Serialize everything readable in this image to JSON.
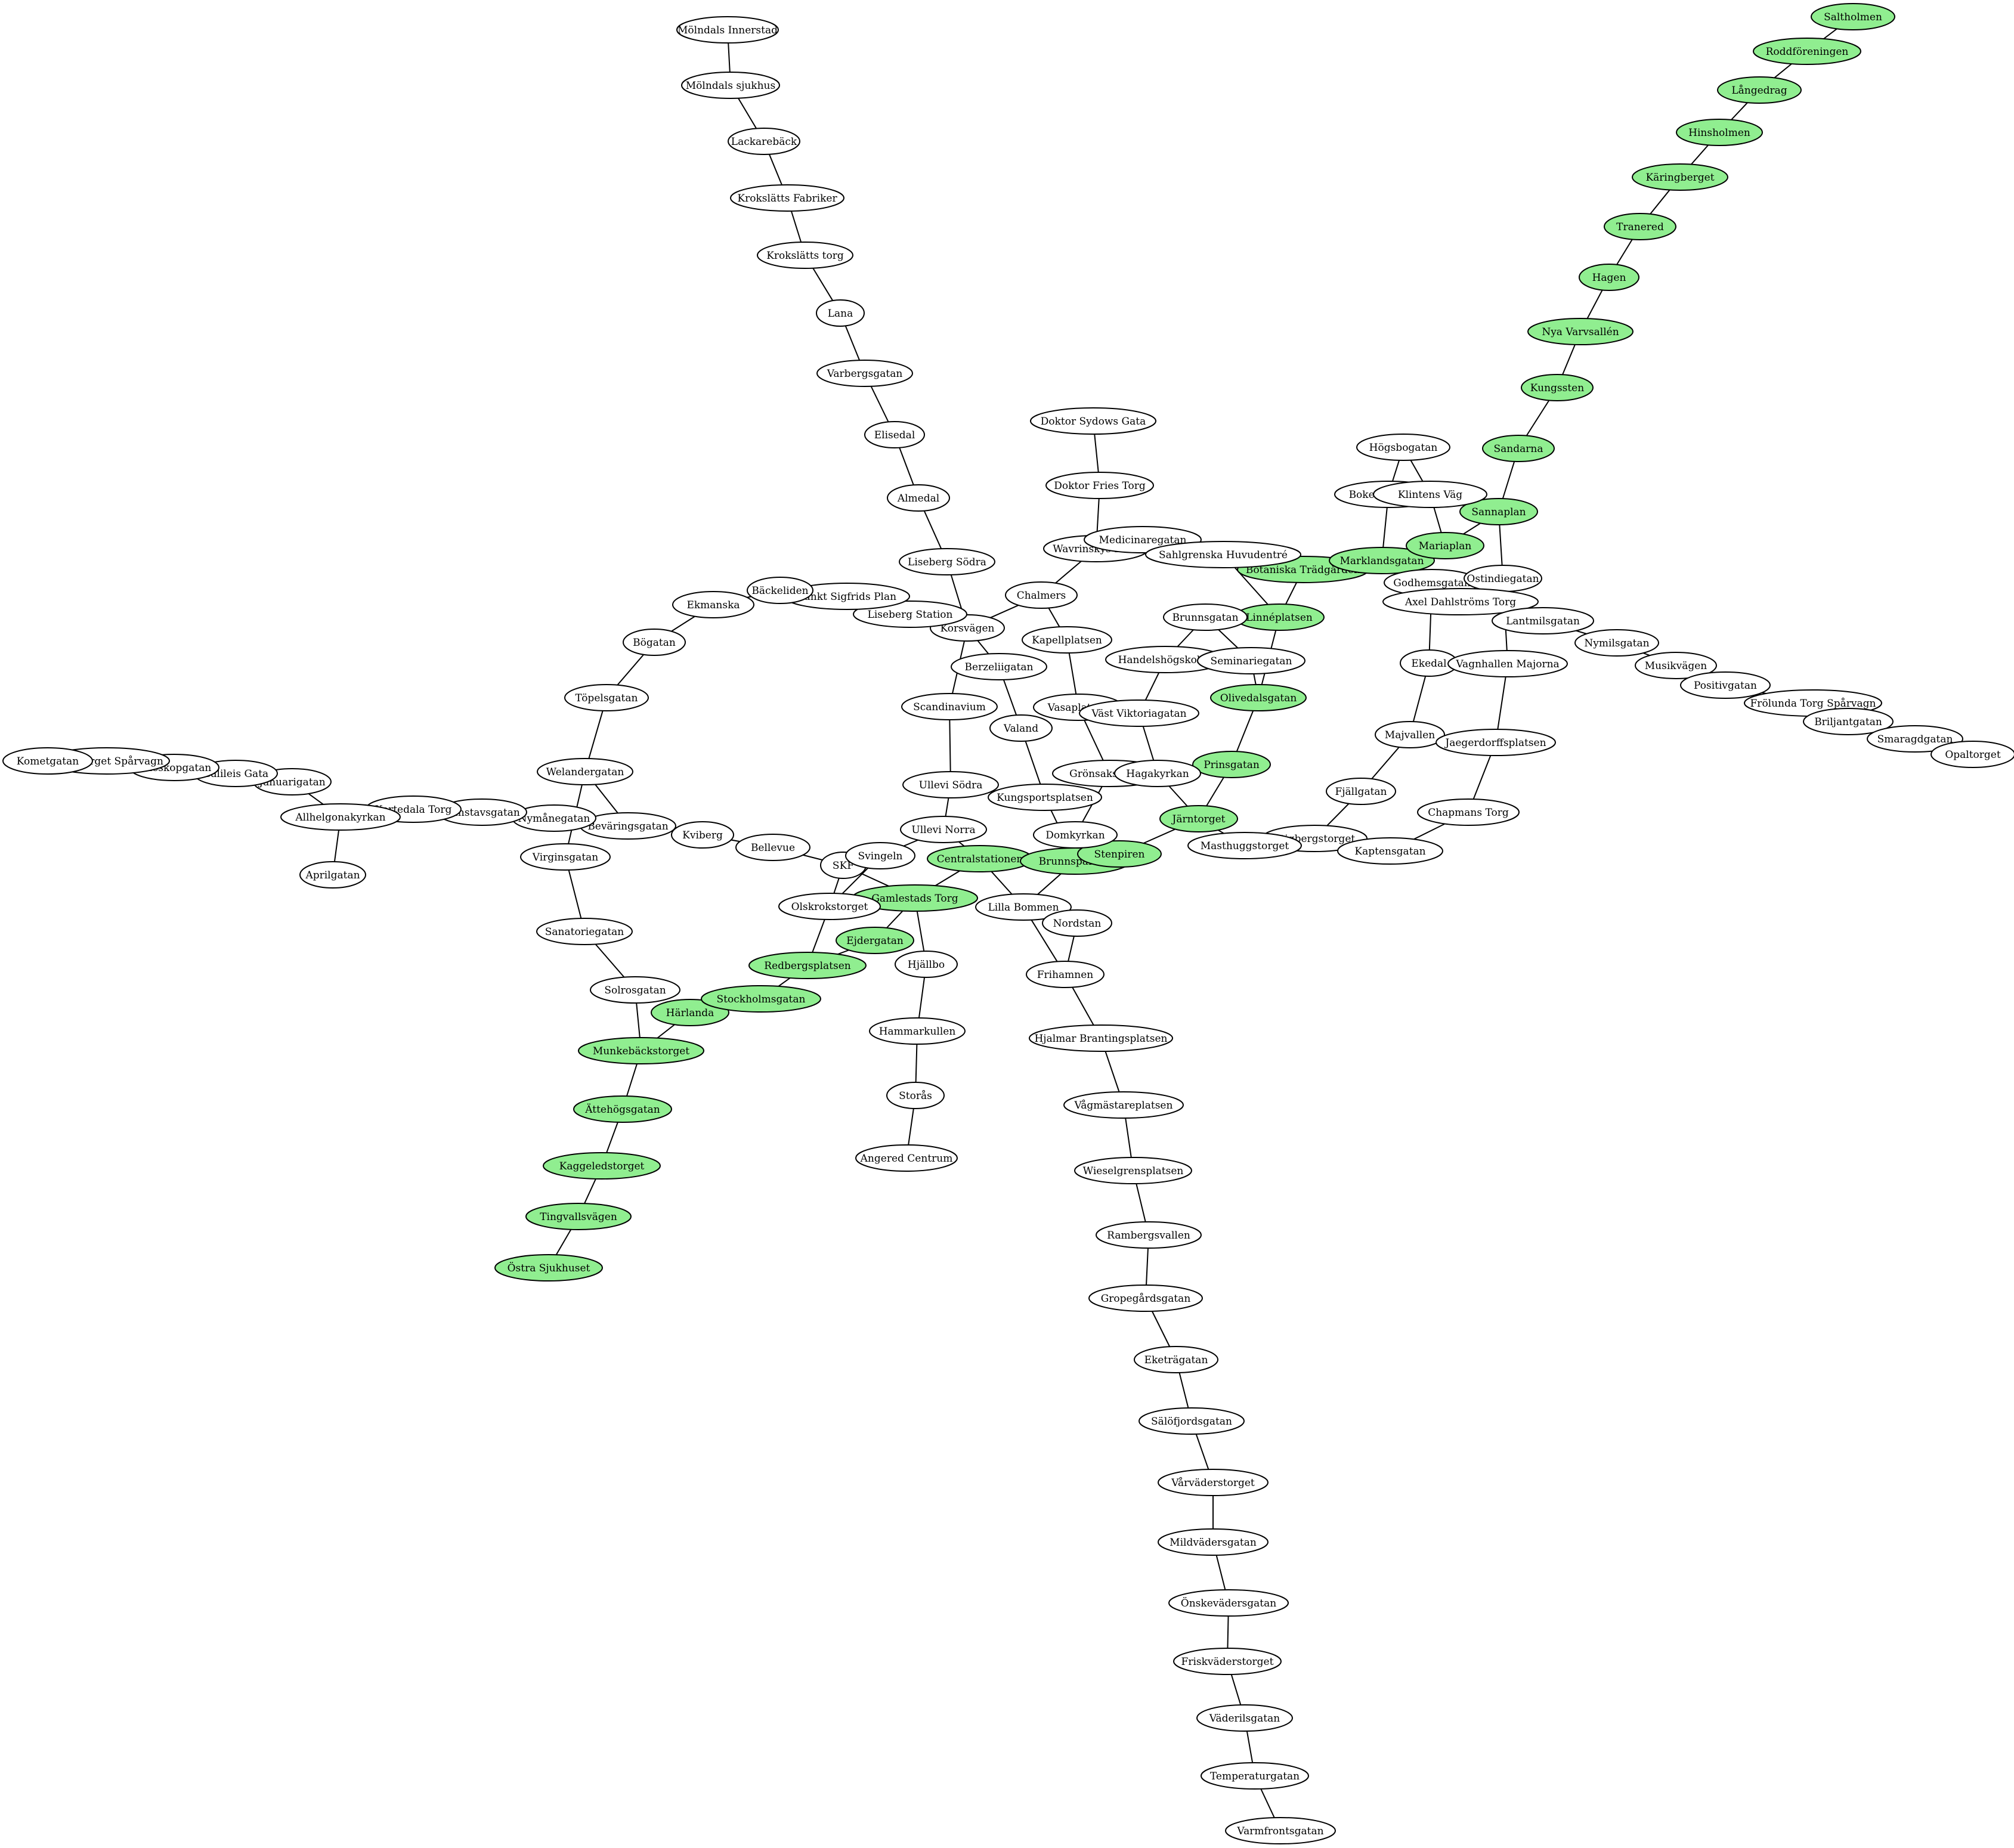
{
  "colors": {
    "highlight": "#90ee90",
    "default": "#ffffff",
    "stroke": "#000000"
  },
  "nodes": [
    {
      "id": "molndals_innerstad",
      "label": "Mölndals Innerstad",
      "hl": false
    },
    {
      "id": "molndals_sjukhus",
      "label": "Mölndals sjukhus",
      "hl": false
    },
    {
      "id": "lackareback",
      "label": "Lackarebäck",
      "hl": false
    },
    {
      "id": "krokslatts_fabriker",
      "label": "Krokslätts Fabriker",
      "hl": false
    },
    {
      "id": "krokslatts_torg",
      "label": "Krokslätts torg",
      "hl": false
    },
    {
      "id": "lana",
      "label": "Lana",
      "hl": false
    },
    {
      "id": "varbergsgatan",
      "label": "Varbergsgatan",
      "hl": false
    },
    {
      "id": "elisedal",
      "label": "Elisedal",
      "hl": false
    },
    {
      "id": "almedal",
      "label": "Almedal",
      "hl": false
    },
    {
      "id": "liseberg_sodra",
      "label": "Liseberg Södra",
      "hl": false
    },
    {
      "id": "korsvagen",
      "label": "Korsvägen",
      "hl": false
    },
    {
      "id": "liseberg_station",
      "label": "Liseberg Station",
      "hl": false
    },
    {
      "id": "sankt_sigfrids_plan",
      "label": "Sankt Sigfrids Plan",
      "hl": false
    },
    {
      "id": "backebol",
      "label": "Bäckeliden",
      "hl": false
    },
    {
      "id": "ekmanska",
      "label": "Ekmanska",
      "hl": false
    },
    {
      "id": "bogatan",
      "label": "Bögatan",
      "hl": false
    },
    {
      "id": "topelsgatan",
      "label": "Töpelsgatan",
      "hl": false
    },
    {
      "id": "welandergatan",
      "label": "Welandergatan",
      "hl": false
    },
    {
      "id": "virginsgatan",
      "label": "Virginsgatan",
      "hl": false
    },
    {
      "id": "sanatoriegatan",
      "label": "Sanatoriegatan",
      "hl": false
    },
    {
      "id": "solrosgatan",
      "label": "Solrosgatan",
      "hl": false
    },
    {
      "id": "munkebackstorget",
      "label": "Munkebäckstorget",
      "hl": true
    },
    {
      "id": "attehogsgatan",
      "label": "Ättehögsgatan",
      "hl": true
    },
    {
      "id": "kaggeledstorget",
      "label": "Kaggeledstorget",
      "hl": true
    },
    {
      "id": "tingvallsvagen",
      "label": "Tingvallsvägen",
      "hl": true
    },
    {
      "id": "ostra_sjukhuset",
      "label": "Östra Sjukhuset",
      "hl": true
    },
    {
      "id": "harlanda",
      "label": "Härlanda",
      "hl": true
    },
    {
      "id": "stockholmsgatan",
      "label": "Stockholmsgatan",
      "hl": true
    },
    {
      "id": "redbergsplatsen",
      "label": "Redbergsplatsen",
      "hl": true
    },
    {
      "id": "ejdergatan",
      "label": "Ejdergatan",
      "hl": true
    },
    {
      "id": "gamlestads_torg",
      "label": "Gamlestads Torg",
      "hl": true
    },
    {
      "id": "olskrokstorget",
      "label": "Olskrokstorget",
      "hl": false
    },
    {
      "id": "skf",
      "label": "SKF",
      "hl": false
    },
    {
      "id": "svingeln",
      "label": "Svingeln",
      "hl": false
    },
    {
      "id": "bellevue",
      "label": "Bellevue",
      "hl": false
    },
    {
      "id": "kviberg",
      "label": "Kviberg",
      "hl": false
    },
    {
      "id": "bevaringsgatan",
      "label": "Beväringsgatan",
      "hl": false
    },
    {
      "id": "nymanegatan",
      "label": "Nymånegatan",
      "hl": false
    },
    {
      "id": "runstavsgatan",
      "label": "Runstavsgatan",
      "hl": false
    },
    {
      "id": "kortedala_torg",
      "label": "Kortedala Torg",
      "hl": false
    },
    {
      "id": "allhelgonakyrkan",
      "label": "Allhelgonakyrkan",
      "hl": false
    },
    {
      "id": "aprilgatan",
      "label": "Aprilgatan",
      "hl": false
    },
    {
      "id": "januarigatan",
      "label": "Januarigatan",
      "hl": false
    },
    {
      "id": "galileis_gata",
      "label": "Galileis Gata",
      "hl": false
    },
    {
      "id": "teleskopgatan",
      "label": "Teleskopgatan",
      "hl": false
    },
    {
      "id": "rymdtorget",
      "label": "Rymdtorget Spårvagn",
      "hl": false
    },
    {
      "id": "kometgatan",
      "label": "Kometgatan",
      "hl": false
    },
    {
      "id": "hjallbo",
      "label": "Hjällbo",
      "hl": false
    },
    {
      "id": "hammarkullen",
      "label": "Hammarkullen",
      "hl": false
    },
    {
      "id": "storas",
      "label": "Storås",
      "hl": false
    },
    {
      "id": "angered_centrum",
      "label": "Angered Centrum",
      "hl": false
    },
    {
      "id": "centralstation",
      "label": "Centralstationen",
      "hl": true
    },
    {
      "id": "brunnsparken",
      "label": "Brunnsparken",
      "hl": true
    },
    {
      "id": "stenpiren",
      "label": "Stenpiren",
      "hl": true
    },
    {
      "id": "jarntorget",
      "label": "Järntorget",
      "hl": true
    },
    {
      "id": "prinsgatan",
      "label": "Prinsgatan",
      "hl": true
    },
    {
      "id": "olivedalsgatan",
      "label": "Olivedalsgatan",
      "hl": true
    },
    {
      "id": "linneplatsen",
      "label": "Linnéplatsen",
      "hl": true
    },
    {
      "id": "botaniska",
      "label": "Botaniska Trädgården",
      "hl": true
    },
    {
      "id": "marklandsgatan",
      "label": "Marklandsgatan",
      "hl": true
    },
    {
      "id": "mariaplan",
      "label": "Mariaplan",
      "hl": true
    },
    {
      "id": "sannaplan",
      "label": "Sannaplan",
      "hl": true
    },
    {
      "id": "sandarna",
      "label": "Sandarna",
      "hl": true
    },
    {
      "id": "kungssten",
      "label": "Kungssten",
      "hl": true
    },
    {
      "id": "nya_varvsallen",
      "label": "Nya Varvsallén",
      "hl": true
    },
    {
      "id": "hagen",
      "label": "Hagen",
      "hl": true
    },
    {
      "id": "tranered",
      "label": "Tranered",
      "hl": true
    },
    {
      "id": "karingberget",
      "label": "Käringberget",
      "hl": true
    },
    {
      "id": "hinsholmen",
      "label": "Hinsholmen",
      "hl": true
    },
    {
      "id": "langedrag",
      "label": "Långedrag",
      "hl": true
    },
    {
      "id": "roddforeningen",
      "label": "Roddföreningen",
      "hl": true
    },
    {
      "id": "saltholmen",
      "label": "Saltholmen",
      "hl": true
    },
    {
      "id": "ullevi_sodra",
      "label": "Ullevi Södra",
      "hl": false
    },
    {
      "id": "ullevi_norra",
      "label": "Ullevi Norra",
      "hl": false
    },
    {
      "id": "scandinavium",
      "label": "Scandinavium",
      "hl": false
    },
    {
      "id": "berzeliigatan",
      "label": "Berzeliigatan",
      "hl": false
    },
    {
      "id": "valand",
      "label": "Valand",
      "hl": false
    },
    {
      "id": "kungsportsplatsen",
      "label": "Kungsportsplatsen",
      "hl": false
    },
    {
      "id": "domkyrkan",
      "label": "Domkyrkan",
      "hl": false
    },
    {
      "id": "lilla_bommen",
      "label": "Lilla Bommen",
      "hl": false
    },
    {
      "id": "nordstan",
      "label": "Nordstan",
      "hl": false
    },
    {
      "id": "frihamnen",
      "label": "Frihamnen",
      "hl": false
    },
    {
      "id": "hjalmar_brantingsplatsen",
      "label": "Hjalmar Brantingsplatsen",
      "hl": false
    },
    {
      "id": "vagmastareplatsen",
      "label": "Vågmästareplatsen",
      "hl": false
    },
    {
      "id": "wieselgrensplatsen",
      "label": "Wieselgrensplatsen",
      "hl": false
    },
    {
      "id": "rambergsvallen",
      "label": "Rambergsvallen",
      "hl": false
    },
    {
      "id": "gropegardsgatan",
      "label": "Gropegårdsgatan",
      "hl": false
    },
    {
      "id": "eketragatan",
      "label": "Eketrägatan",
      "hl": false
    },
    {
      "id": "salofjordsgatan",
      "label": "Sälöfjordsgatan",
      "hl": false
    },
    {
      "id": "varvaderstorget",
      "label": "Vårväderstorget",
      "hl": false
    },
    {
      "id": "mildvadersgatan",
      "label": "Mildvädersgatan",
      "hl": false
    },
    {
      "id": "onskevadersgatan",
      "label": "Önskevädersgatan",
      "hl": false
    },
    {
      "id": "friskvaderstorget",
      "label": "Friskväderstorget",
      "hl": false
    },
    {
      "id": "vaderilsgatan",
      "label": "Väderilsgatan",
      "hl": false
    },
    {
      "id": "temperaturgatan",
      "label": "Temperaturgatan",
      "hl": false
    },
    {
      "id": "varmfrontsgatan",
      "label": "Varmfrontsgatan",
      "hl": false
    },
    {
      "id": "chalmers",
      "label": "Chalmers",
      "hl": false
    },
    {
      "id": "kapellplatsen",
      "label": "Kapellplatsen",
      "hl": false
    },
    {
      "id": "vasaplatsen",
      "label": "Vasaplatsen",
      "hl": false
    },
    {
      "id": "grönsakstorget",
      "label": "Grönsakstorget",
      "hl": false
    },
    {
      "id": "hagakyrkan",
      "label": "Hagakyrkan",
      "hl": false
    },
    {
      "id": "vast_viktoriagatan",
      "label": "Väst Viktoriagatan",
      "hl": false
    },
    {
      "id": "handelshogskolan",
      "label": "Handelshögskolan",
      "hl": false
    },
    {
      "id": "seminariegatan",
      "label": "Seminariegatan",
      "hl": false
    },
    {
      "id": "brunnsgatan",
      "label": "Brunnsgatan",
      "hl": false
    },
    {
      "id": "wavrinskys_plats",
      "label": "Wavrinskys Plats",
      "hl": false
    },
    {
      "id": "medicinaregatan",
      "label": "Medicinaregatan",
      "hl": false
    },
    {
      "id": "sahlgrenska",
      "label": "Sahlgrenska Huvudentré",
      "hl": false
    },
    {
      "id": "doktor_fries_torg",
      "label": "Doktor Fries Torg",
      "hl": false
    },
    {
      "id": "doktor_sydows_gata",
      "label": "Doktor Sydows Gata",
      "hl": false
    },
    {
      "id": "hogsbogatan",
      "label": "Högsbogatan",
      "hl": false
    },
    {
      "id": "bokekullsgatan",
      "label": "Bokekullsgatan",
      "hl": false
    },
    {
      "id": "klintens_vag",
      "label": "Klintens Väg",
      "hl": false
    },
    {
      "id": "godhemsgatan",
      "label": "Godhemsgatan",
      "hl": false
    },
    {
      "id": "ostindiegatan",
      "label": "Ostindiegatan",
      "hl": false
    },
    {
      "id": "axel_dahlstroms_torg",
      "label": "Axel Dahlströms Torg",
      "hl": false
    },
    {
      "id": "lantmilsgatan",
      "label": "Lantmilsgatan",
      "hl": false
    },
    {
      "id": "nymilsgatan",
      "label": "Nymilsgatan",
      "hl": false
    },
    {
      "id": "musikvagen",
      "label": "Musikvägen",
      "hl": false
    },
    {
      "id": "positivgatan",
      "label": "Positivgatan",
      "hl": false
    },
    {
      "id": "frolunda_torg",
      "label": "Frölunda Torg Spårvagn",
      "hl": false
    },
    {
      "id": "briljantgatan",
      "label": "Briljantgatan",
      "hl": false
    },
    {
      "id": "smaragdgatan",
      "label": "Smaragdgatan",
      "hl": false
    },
    {
      "id": "opaltorget",
      "label": "Opaltorget",
      "hl": false
    },
    {
      "id": "ekedal",
      "label": "Ekedal",
      "hl": false
    },
    {
      "id": "vagnhallen_majorna",
      "label": "Vagnhallen Majorna",
      "hl": false
    },
    {
      "id": "majvallen",
      "label": "Majvallen",
      "hl": false
    },
    {
      "id": "jaegerdorffsplatsen",
      "label": "Jaegerdorffsplatsen",
      "hl": false
    },
    {
      "id": "fjallgatan",
      "label": "Fjällgatan",
      "hl": false
    },
    {
      "id": "chapmans_torg",
      "label": "Chapmans Torg",
      "hl": false
    },
    {
      "id": "stigbergstorget",
      "label": "Stigbergstorget",
      "hl": false
    },
    {
      "id": "masthuggstorget",
      "label": "Masthuggstorget",
      "hl": false
    },
    {
      "id": "kaptensgatan",
      "label": "Kaptensgatan",
      "hl": false
    }
  ]
}
